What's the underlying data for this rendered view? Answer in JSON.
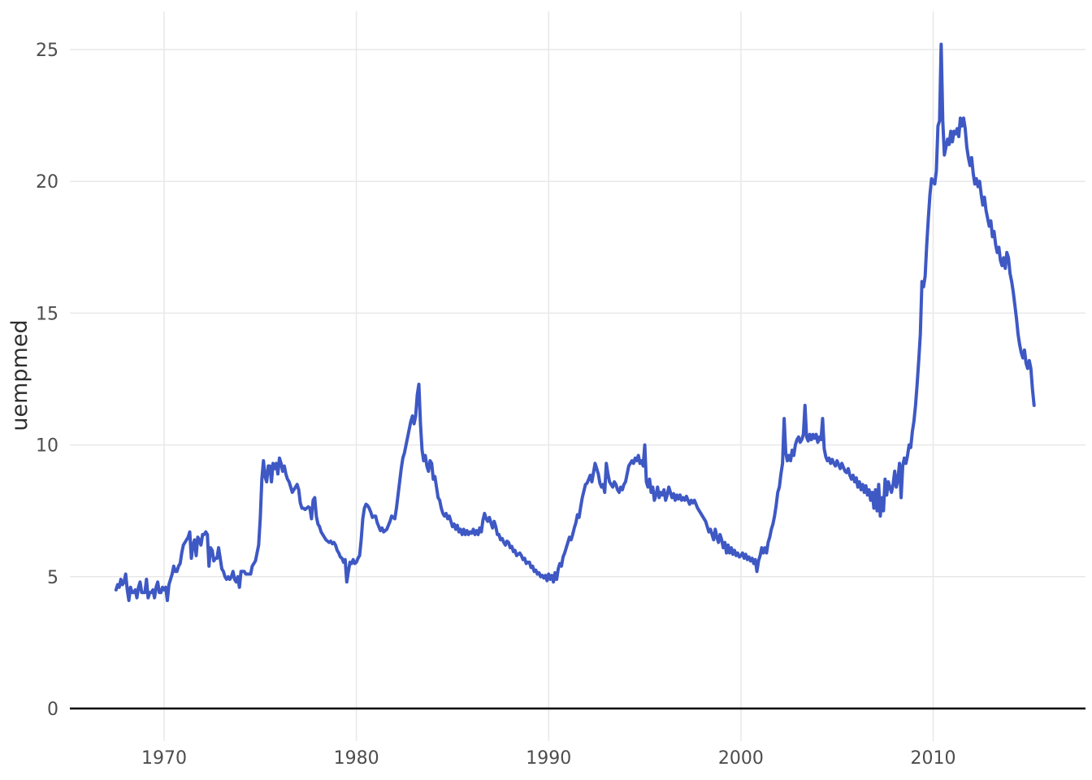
{
  "chart_data": {
    "type": "line",
    "title": "",
    "xlabel": "",
    "ylabel": "uempmed",
    "legend": "none",
    "grid": "major-only",
    "x_tick_labels": [
      "1970",
      "1980",
      "1990",
      "2000",
      "2010"
    ],
    "x_tick_years": [
      1970,
      1980,
      1990,
      2000,
      2010
    ],
    "y_tick_labels": [
      "0",
      "5",
      "10",
      "15",
      "20",
      "25"
    ],
    "y_tick_values": [
      0,
      5,
      10,
      15,
      20,
      25
    ],
    "x_range_years": [
      1967.5,
      2015.25
    ],
    "ylim": [
      -1.3,
      26.5
    ],
    "colors": {
      "line": "#3e58c4",
      "zero_line": "#000000",
      "grid": "#e8e8e8",
      "tick_label": "#4d4d4d",
      "axis_title": "#2e2e2e",
      "background": "#ffffff"
    },
    "series": [
      {
        "name": "uempmed",
        "frequency": "monthly",
        "start": "1967-07",
        "end": "2015-04",
        "values": [
          4.5,
          4.7,
          4.6,
          4.9,
          4.7,
          4.8,
          5.1,
          4.5,
          4.1,
          4.6,
          4.4,
          4.4,
          4.5,
          4.2,
          4.6,
          4.8,
          4.4,
          4.4,
          4.4,
          4.9,
          4.2,
          4.4,
          4.4,
          4.5,
          4.2,
          4.6,
          4.8,
          4.4,
          4.4,
          4.6,
          4.5,
          4.6,
          4.1,
          4.7,
          4.9,
          5.1,
          5.4,
          5.2,
          5.2,
          5.4,
          5.5,
          5.9,
          6.2,
          6.3,
          6.4,
          6.5,
          6.7,
          5.7,
          6.2,
          6.4,
          5.8,
          6.5,
          6.4,
          6.2,
          6.6,
          6.6,
          6.7,
          6.6,
          5.4,
          6.1,
          6.0,
          5.6,
          5.7,
          5.7,
          6.1,
          5.7,
          5.3,
          5.2,
          5.0,
          4.9,
          5.0,
          4.9,
          5.0,
          5.2,
          4.9,
          4.8,
          5.0,
          4.6,
          5.2,
          5.2,
          5.2,
          5.1,
          5.1,
          5.1,
          5.1,
          5.4,
          5.5,
          5.6,
          5.9,
          6.2,
          7.2,
          8.7,
          9.4,
          8.8,
          8.6,
          9.2,
          9.2,
          8.6,
          9.3,
          9.1,
          9.3,
          8.9,
          9.5,
          9.3,
          9.0,
          9.2,
          8.9,
          8.7,
          8.6,
          8.4,
          8.2,
          8.3,
          8.4,
          8.5,
          8.3,
          7.8,
          7.6,
          7.6,
          7.55,
          7.6,
          7.65,
          7.6,
          7.2,
          7.9,
          8.0,
          7.3,
          7.0,
          6.9,
          6.7,
          6.6,
          6.5,
          6.4,
          6.35,
          6.3,
          6.35,
          6.25,
          6.3,
          6.2,
          6.0,
          5.9,
          5.75,
          5.7,
          5.55,
          5.65,
          4.8,
          5.2,
          5.55,
          5.5,
          5.65,
          5.5,
          5.55,
          5.7,
          5.8,
          6.4,
          7.2,
          7.6,
          7.75,
          7.7,
          7.6,
          7.45,
          7.25,
          7.3,
          7.3,
          7.05,
          6.9,
          6.75,
          6.85,
          6.7,
          6.75,
          6.8,
          6.95,
          7.1,
          7.3,
          7.25,
          7.2,
          7.6,
          8.1,
          8.6,
          9.1,
          9.5,
          9.7,
          10.0,
          10.3,
          10.6,
          10.9,
          11.1,
          10.8,
          11.1,
          11.9,
          12.3,
          10.8,
          9.8,
          9.4,
          9.6,
          9.2,
          9.0,
          9.4,
          9.3,
          8.7,
          8.8,
          8.4,
          8.0,
          7.9,
          7.6,
          7.4,
          7.3,
          7.4,
          7.2,
          7.3,
          7.1,
          6.9,
          7.0,
          6.8,
          6.95,
          6.7,
          6.8,
          6.6,
          6.8,
          6.6,
          6.75,
          6.6,
          6.7,
          6.65,
          6.8,
          6.6,
          6.75,
          6.6,
          6.85,
          6.7,
          7.15,
          7.4,
          7.2,
          7.1,
          7.25,
          7.05,
          6.85,
          7.1,
          6.9,
          6.6,
          6.6,
          6.4,
          6.45,
          6.3,
          6.2,
          6.35,
          6.3,
          6.1,
          6.15,
          5.95,
          6.0,
          5.8,
          5.85,
          5.9,
          5.8,
          5.65,
          5.7,
          5.5,
          5.55,
          5.55,
          5.35,
          5.4,
          5.2,
          5.25,
          5.1,
          5.15,
          5.0,
          5.05,
          4.95,
          5.05,
          4.85,
          5.1,
          4.9,
          5.05,
          4.8,
          5.15,
          4.9,
          5.3,
          5.5,
          5.4,
          5.75,
          5.9,
          6.1,
          6.3,
          6.5,
          6.4,
          6.6,
          6.85,
          7.05,
          7.35,
          7.25,
          7.65,
          8.0,
          8.25,
          8.5,
          8.55,
          8.7,
          8.85,
          8.6,
          8.95,
          9.3,
          9.1,
          8.9,
          8.55,
          8.4,
          8.5,
          8.2,
          9.3,
          8.9,
          8.6,
          8.5,
          8.4,
          8.6,
          8.5,
          8.3,
          8.2,
          8.4,
          8.3,
          8.5,
          8.6,
          8.9,
          9.2,
          9.3,
          9.4,
          9.3,
          9.5,
          9.4,
          9.6,
          9.3,
          9.4,
          9.2,
          10.0,
          8.6,
          8.4,
          8.7,
          8.2,
          8.4,
          7.9,
          8.1,
          8.4,
          8.0,
          8.2,
          8.1,
          8.3,
          7.9,
          8.1,
          8.4,
          8.2,
          8.0,
          8.15,
          7.9,
          8.1,
          7.95,
          8.1,
          7.9,
          8.0,
          7.9,
          8.05,
          7.9,
          7.75,
          7.9,
          7.8,
          7.9,
          7.75,
          7.6,
          7.5,
          7.4,
          7.3,
          7.2,
          7.1,
          6.9,
          6.7,
          6.8,
          6.6,
          6.4,
          6.8,
          6.5,
          6.3,
          6.6,
          6.4,
          6.1,
          6.3,
          5.9,
          6.2,
          5.9,
          6.1,
          5.85,
          6.0,
          5.8,
          5.9,
          5.75,
          5.8,
          5.9,
          5.7,
          5.85,
          5.65,
          5.75,
          5.6,
          5.7,
          5.5,
          5.65,
          5.2,
          5.6,
          5.8,
          6.1,
          5.9,
          6.1,
          5.9,
          6.3,
          6.5,
          6.8,
          7.0,
          7.3,
          7.7,
          8.2,
          8.4,
          8.9,
          9.3,
          11.0,
          9.7,
          9.4,
          9.6,
          9.4,
          9.8,
          9.6,
          10.0,
          10.2,
          10.3,
          10.1,
          10.2,
          10.4,
          11.5,
          10.3,
          10.15,
          10.4,
          10.2,
          10.4,
          10.25,
          10.4,
          10.1,
          10.3,
          10.2,
          11.0,
          9.85,
          9.55,
          9.4,
          9.5,
          9.3,
          9.45,
          9.3,
          9.2,
          9.4,
          9.25,
          9.1,
          9.3,
          9.15,
          9.0,
          8.95,
          9.1,
          8.85,
          8.7,
          8.85,
          8.6,
          8.75,
          8.4,
          8.6,
          8.3,
          8.5,
          8.2,
          8.45,
          8.1,
          8.3,
          7.9,
          8.2,
          7.6,
          8.3,
          7.5,
          8.5,
          7.3,
          8.0,
          7.5,
          8.7,
          8.1,
          8.6,
          8.4,
          8.2,
          8.5,
          9.0,
          8.4,
          8.7,
          9.3,
          8.0,
          9.2,
          9.5,
          9.3,
          9.6,
          10.0,
          9.9,
          10.5,
          10.9,
          11.5,
          12.3,
          13.2,
          14.2,
          16.2,
          16.0,
          16.4,
          17.6,
          18.6,
          19.5,
          20.1,
          20.0,
          19.9,
          20.4,
          22.1,
          22.3,
          25.2,
          22.3,
          21.0,
          21.3,
          21.6,
          21.4,
          21.9,
          21.5,
          21.9,
          21.8,
          22.0,
          21.7,
          22.4,
          22.1,
          22.4,
          22.0,
          21.3,
          20.9,
          20.6,
          20.9,
          20.3,
          19.9,
          20.1,
          19.8,
          20.0,
          19.5,
          19.1,
          19.4,
          18.9,
          18.6,
          18.3,
          18.5,
          17.9,
          18.1,
          17.6,
          17.3,
          17.5,
          17.0,
          16.8,
          17.1,
          16.7,
          17.3,
          17.1,
          16.5,
          16.2,
          15.8,
          15.3,
          14.8,
          14.2,
          13.8,
          13.5,
          13.3,
          13.6,
          13.1,
          12.9,
          13.2,
          12.9,
          12.1,
          11.5
        ]
      }
    ]
  }
}
